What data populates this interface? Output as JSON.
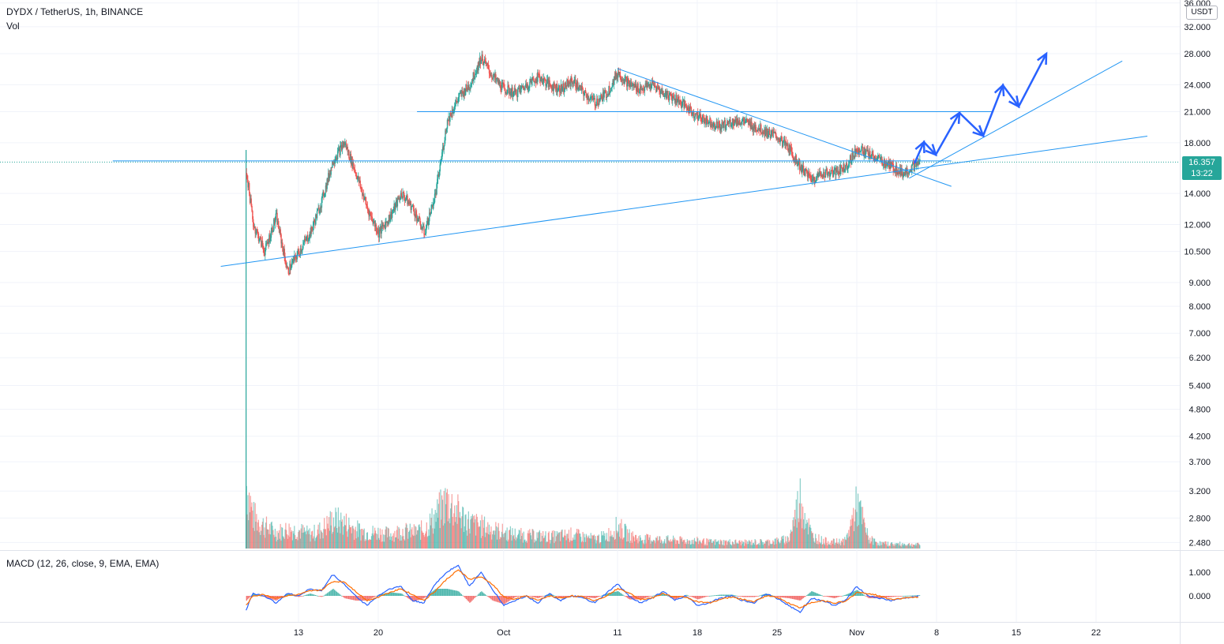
{
  "header": {
    "symbol_line": "DYDX / TetherUS, 1h, BINANCE",
    "volume_label": "Vol",
    "macd_label": "MACD (12, 26, close, 9, EMA, EMA)"
  },
  "price_axis": {
    "currency": "USDT",
    "current_price": "16.357",
    "countdown": "13:22"
  },
  "colors": {
    "up": "#26a69a",
    "down": "#ef5350",
    "drawing": "#2196f3",
    "arrow": "#2962ff",
    "macd_line": "#2962ff",
    "signal_line": "#ff6d00"
  },
  "chart_data": [
    {
      "type": "candlestick",
      "title": "DYDX / TetherUS, 1h, BINANCE",
      "scale": "log",
      "ylim": [
        2.3,
        36
      ],
      "y_ticks": [
        "36.000",
        "32.000",
        "28.000",
        "24.000",
        "21.000",
        "18.000",
        "16.357",
        "14.000",
        "12.000",
        "10.500",
        "9.000",
        "8.000",
        "7.000",
        "6.200",
        "5.400",
        "4.800",
        "4.200",
        "3.700",
        "3.200",
        "2.800",
        "2.480"
      ],
      "x_ticks": [
        "13",
        "20",
        "Oct",
        "11",
        "18",
        "25",
        "Nov",
        "8",
        "15",
        "22"
      ],
      "x_tick_days": [
        13,
        20,
        31,
        41,
        48,
        55,
        62,
        69,
        76,
        83
      ],
      "grid": true,
      "series": [
        {
          "name": "Price",
          "x_days": [
            8.4,
            9.0,
            10.0,
            11.0,
            12.0,
            13.0,
            14.0,
            15.0,
            16.0,
            17.0,
            18.0,
            19.0,
            20.0,
            21.0,
            22.0,
            23.0,
            24.0,
            25.0,
            26.0,
            27.0,
            28.0,
            29.0,
            30.0,
            31.0,
            32.0,
            33.0,
            34.0,
            35.0,
            36.0,
            37.0,
            38.0,
            39.0,
            40.0,
            41.0,
            42.0,
            43.0,
            44.0,
            45.0,
            46.0,
            47.0,
            48.0,
            49.0,
            50.0,
            51.0,
            52.0,
            53.0,
            54.0,
            55.0,
            56.0,
            57.0,
            58.0,
            59.0,
            60.0,
            61.0,
            62.0,
            63.0,
            64.0,
            65.0,
            66.0,
            67.0,
            67.5
          ],
          "close": [
            15.5,
            12.0,
            10.5,
            12.5,
            9.5,
            10.5,
            11.5,
            13.5,
            16.5,
            18.0,
            15.5,
            13.0,
            11.5,
            12.5,
            14.0,
            13.0,
            11.5,
            14.0,
            20.0,
            22.5,
            24.0,
            27.5,
            25.0,
            23.5,
            23.0,
            24.0,
            25.0,
            24.0,
            23.5,
            24.5,
            23.0,
            22.0,
            23.0,
            25.5,
            24.0,
            23.5,
            24.0,
            23.0,
            22.5,
            21.5,
            20.5,
            20.0,
            19.5,
            20.0,
            20.0,
            19.5,
            19.0,
            18.5,
            17.5,
            16.0,
            15.0,
            15.5,
            15.5,
            16.0,
            17.5,
            17.0,
            16.5,
            16.0,
            15.5,
            16.0,
            16.357
          ]
        }
      ]
    },
    {
      "type": "bar",
      "name": "Vol",
      "x_days": [
        8.4,
        9.0,
        10.0,
        11.0,
        12.0,
        13.0,
        14.0,
        15.0,
        16.0,
        17.0,
        18.0,
        19.0,
        20.0,
        21.0,
        22.0,
        23.0,
        24.0,
        25.0,
        26.0,
        27.0,
        28.0,
        29.0,
        30.0,
        31.0,
        32.0,
        33.0,
        34.0,
        35.0,
        36.0,
        37.0,
        38.0,
        39.0,
        40.0,
        41.0,
        42.0,
        43.0,
        44.0,
        45.0,
        46.0,
        47.0,
        48.0,
        49.0,
        50.0,
        51.0,
        52.0,
        53.0,
        54.0,
        55.0,
        56.0,
        57.0,
        58.0,
        59.0,
        60.0,
        61.0,
        62.0,
        63.0,
        64.0,
        65.0,
        66.0,
        67.0,
        67.5
      ],
      "relative_values": [
        1.0,
        0.5,
        0.35,
        0.25,
        0.3,
        0.28,
        0.22,
        0.3,
        0.45,
        0.4,
        0.3,
        0.25,
        0.25,
        0.22,
        0.28,
        0.25,
        0.3,
        0.5,
        0.75,
        0.55,
        0.4,
        0.35,
        0.3,
        0.25,
        0.22,
        0.2,
        0.2,
        0.18,
        0.2,
        0.22,
        0.18,
        0.15,
        0.2,
        0.35,
        0.2,
        0.15,
        0.15,
        0.14,
        0.13,
        0.12,
        0.12,
        0.1,
        0.1,
        0.1,
        0.09,
        0.1,
        0.1,
        0.12,
        0.15,
        0.8,
        0.2,
        0.12,
        0.1,
        0.12,
        0.7,
        0.15,
        0.08,
        0.07,
        0.07,
        0.06,
        0.06
      ]
    },
    {
      "type": "line",
      "name": "MACD (12, 26, close, 9, EMA, EMA)",
      "y_ticks": [
        "1.000",
        "0.000"
      ],
      "ylim": [
        -1.0,
        1.6
      ],
      "x_days": [
        8.4,
        9.0,
        10.0,
        11.0,
        12.0,
        13.0,
        14.0,
        15.0,
        16.0,
        17.0,
        18.0,
        19.0,
        20.0,
        21.0,
        22.0,
        23.0,
        24.0,
        25.0,
        26.0,
        27.0,
        28.0,
        29.0,
        30.0,
        31.0,
        32.0,
        33.0,
        34.0,
        35.0,
        36.0,
        37.0,
        38.0,
        39.0,
        40.0,
        41.0,
        42.0,
        43.0,
        44.0,
        45.0,
        46.0,
        47.0,
        48.0,
        49.0,
        50.0,
        51.0,
        52.0,
        53.0,
        54.0,
        55.0,
        56.0,
        57.0,
        58.0,
        59.0,
        60.0,
        61.0,
        62.0,
        63.0,
        64.0,
        65.0,
        66.0,
        67.0,
        67.5
      ],
      "series": [
        {
          "name": "MACD",
          "values": [
            -0.6,
            0.1,
            0.0,
            -0.3,
            0.1,
            0.0,
            0.3,
            0.2,
            0.9,
            0.5,
            0.0,
            -0.4,
            0.0,
            0.3,
            0.4,
            -0.2,
            -0.3,
            0.5,
            1.0,
            1.3,
            0.4,
            1.0,
            0.3,
            -0.4,
            -0.2,
            0.0,
            -0.3,
            0.1,
            -0.2,
            0.0,
            -0.1,
            -0.3,
            0.1,
            0.5,
            0.0,
            -0.3,
            -0.1,
            0.2,
            -0.2,
            0.0,
            -0.4,
            -0.3,
            -0.1,
            0.0,
            -0.2,
            -0.3,
            0.1,
            -0.1,
            -0.4,
            -0.7,
            -0.1,
            -0.2,
            -0.4,
            -0.2,
            0.4,
            0.0,
            -0.1,
            -0.2,
            -0.1,
            -0.05,
            0.0
          ]
        },
        {
          "name": "Signal",
          "values": [
            -0.4,
            0.0,
            0.05,
            -0.1,
            0.0,
            0.05,
            0.2,
            0.25,
            0.6,
            0.6,
            0.2,
            -0.2,
            -0.05,
            0.15,
            0.3,
            0.05,
            -0.2,
            0.2,
            0.7,
            1.1,
            0.7,
            0.8,
            0.5,
            -0.05,
            -0.15,
            0.0,
            -0.2,
            0.0,
            -0.1,
            0.0,
            -0.05,
            -0.2,
            0.0,
            0.3,
            0.15,
            -0.15,
            -0.1,
            0.1,
            -0.05,
            -0.05,
            -0.25,
            -0.3,
            -0.15,
            -0.05,
            -0.15,
            -0.25,
            0.0,
            -0.05,
            -0.3,
            -0.5,
            -0.3,
            -0.2,
            -0.3,
            -0.25,
            0.15,
            0.1,
            0.0,
            -0.15,
            -0.1,
            -0.07,
            -0.03
          ]
        }
      ]
    }
  ]
}
